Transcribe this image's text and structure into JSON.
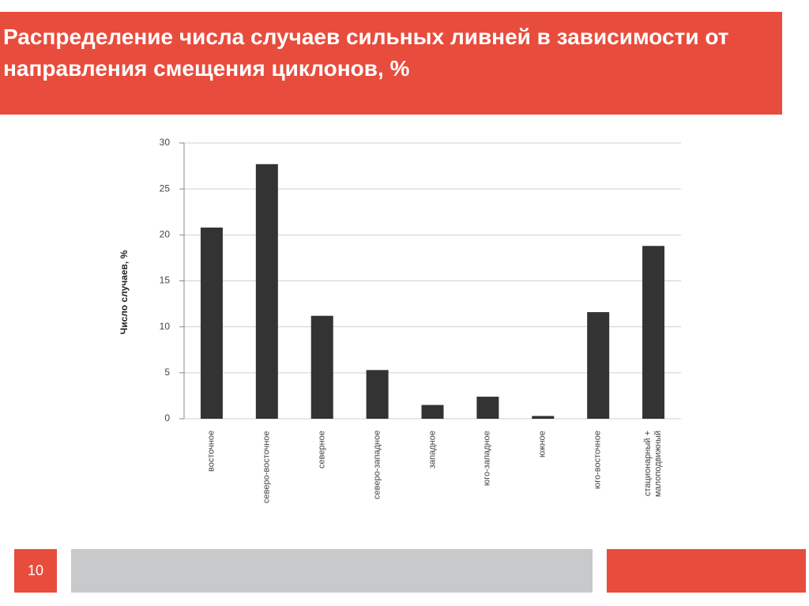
{
  "chart_data": {
    "type": "bar",
    "title": "Распределение числа случаев сильных ливней в зависимости от направления смещения циклонов, %",
    "y_label": "Число случаев, %",
    "categories": [
      "восточное",
      "северо-восточное",
      "северное",
      "северо-западное",
      "западное",
      "юго-западное",
      "южное",
      "юго-восточное",
      "стационарный + малоподвижный"
    ],
    "values": [
      20.8,
      27.7,
      11.2,
      5.3,
      1.5,
      2.4,
      0.3,
      11.6,
      18.8
    ],
    "color": "#333333",
    "ylim": [
      0,
      30
    ],
    "yticks": [
      0,
      5,
      10,
      15,
      20,
      25,
      30
    ],
    "grid": true
  },
  "slide_number": 10
}
